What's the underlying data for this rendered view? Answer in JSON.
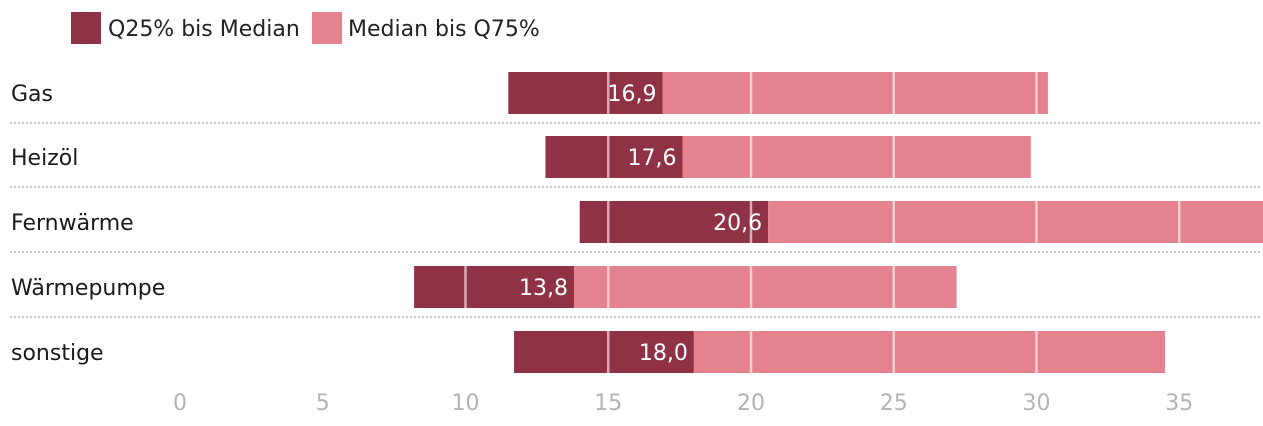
{
  "chart_data": {
    "type": "bar",
    "orientation": "horizontal",
    "categories": [
      "Gas",
      "Heizöl",
      "Fernwärme",
      "Wärmepumpe",
      "sonstige"
    ],
    "q25": [
      11.5,
      12.8,
      14.0,
      8.2,
      11.7
    ],
    "median": [
      16.9,
      17.6,
      20.6,
      13.8,
      18.0
    ],
    "median_labels": [
      "16,9",
      "17,6",
      "20,6",
      "13,8",
      "18,0"
    ],
    "q75": [
      30.4,
      29.8,
      38.0,
      27.2,
      34.5
    ],
    "series": [
      {
        "name": "Q25% bis Median",
        "color": "#8f3246"
      },
      {
        "name": "Median bis Q75%",
        "color": "#e5828f"
      }
    ],
    "xlim": [
      0,
      38
    ],
    "xticks": [
      0,
      5,
      10,
      15,
      20,
      25,
      30,
      35
    ],
    "xtick_labels": [
      "0",
      "5",
      "10",
      "15",
      "20",
      "25",
      "30",
      "35"
    ],
    "grid": true,
    "legend_position": "top-left"
  }
}
